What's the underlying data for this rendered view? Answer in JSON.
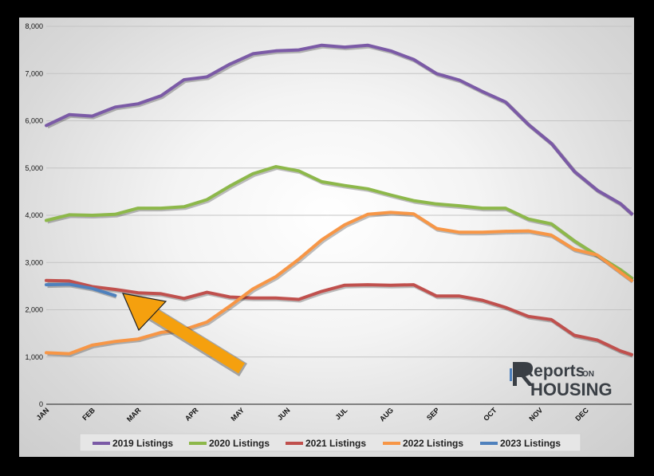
{
  "chart_data": {
    "type": "line",
    "y_ticks": [
      "0",
      "1,000",
      "2,000",
      "3,000",
      "4,000",
      "5,000",
      "6,000",
      "7,000",
      "8,000"
    ],
    "ylim": [
      0,
      8000
    ],
    "xlim": [
      0,
      51
    ],
    "months": [
      {
        "label": "JAN",
        "week": 0
      },
      {
        "label": "FEB",
        "week": 4
      },
      {
        "label": "MAR",
        "week": 8
      },
      {
        "label": "APR",
        "week": 13
      },
      {
        "label": "MAY",
        "week": 17
      },
      {
        "label": "JUN",
        "week": 21
      },
      {
        "label": "JUL",
        "week": 26
      },
      {
        "label": "AUG",
        "week": 30
      },
      {
        "label": "SEP",
        "week": 34
      },
      {
        "label": "OCT",
        "week": 39
      },
      {
        "label": "NOV",
        "week": 43
      },
      {
        "label": "DEC",
        "week": 47
      }
    ],
    "grid": true,
    "legend_position": "bottom",
    "series": [
      {
        "name": "2019 Listings",
        "color": "#7B5AA6",
        "x": [
          0,
          2,
          4,
          6,
          8,
          10,
          12,
          14,
          16,
          18,
          20,
          22,
          24,
          26,
          28,
          30,
          32,
          34,
          36,
          38,
          40,
          42,
          44,
          46,
          48,
          50,
          51
        ],
        "values": [
          5900,
          6130,
          6100,
          6290,
          6360,
          6530,
          6870,
          6930,
          7200,
          7420,
          7480,
          7500,
          7600,
          7560,
          7600,
          7480,
          7300,
          7000,
          6860,
          6620,
          6400,
          5920,
          5520,
          4930,
          4530,
          4250,
          4030
        ]
      },
      {
        "name": "2020 Listings",
        "color": "#8DB84A",
        "x": [
          0,
          2,
          4,
          6,
          8,
          10,
          12,
          14,
          16,
          18,
          20,
          22,
          24,
          26,
          28,
          30,
          32,
          34,
          36,
          38,
          40,
          42,
          44,
          46,
          48,
          50,
          51
        ],
        "values": [
          3890,
          4010,
          4000,
          4020,
          4150,
          4150,
          4180,
          4330,
          4620,
          4880,
          5030,
          4940,
          4710,
          4630,
          4560,
          4430,
          4310,
          4240,
          4200,
          4150,
          4150,
          3920,
          3820,
          3460,
          3150,
          2850,
          2670
        ]
      },
      {
        "name": "2021 Listings",
        "color": "#C0504D",
        "x": [
          0,
          2,
          4,
          6,
          8,
          10,
          12,
          14,
          16,
          18,
          20,
          22,
          24,
          26,
          28,
          30,
          32,
          34,
          36,
          38,
          40,
          42,
          44,
          46,
          48,
          50,
          51
        ],
        "values": [
          2620,
          2610,
          2490,
          2430,
          2360,
          2340,
          2240,
          2370,
          2270,
          2250,
          2250,
          2220,
          2390,
          2520,
          2530,
          2520,
          2530,
          2290,
          2290,
          2200,
          2050,
          1860,
          1790,
          1460,
          1360,
          1130,
          1050
        ]
      },
      {
        "name": "2022 Listings",
        "color": "#F79646",
        "x": [
          0,
          2,
          4,
          6,
          8,
          10,
          12,
          14,
          16,
          18,
          20,
          22,
          24,
          26,
          28,
          30,
          32,
          34,
          36,
          38,
          40,
          42,
          44,
          46,
          48,
          50,
          51
        ],
        "values": [
          1090,
          1070,
          1250,
          1330,
          1380,
          1520,
          1580,
          1740,
          2080,
          2440,
          2700,
          3070,
          3480,
          3800,
          4020,
          4060,
          4030,
          3720,
          3640,
          3640,
          3660,
          3670,
          3580,
          3280,
          3160,
          2800,
          2620
        ]
      },
      {
        "name": "2023 Listings",
        "color": "#4F81BD",
        "x": [
          0,
          2,
          4,
          6
        ],
        "values": [
          2530,
          2540,
          2450,
          2300
        ]
      }
    ]
  },
  "logo": {
    "line1": "Reports",
    "line1_suffix": "ON",
    "line2": "HOUSING"
  }
}
